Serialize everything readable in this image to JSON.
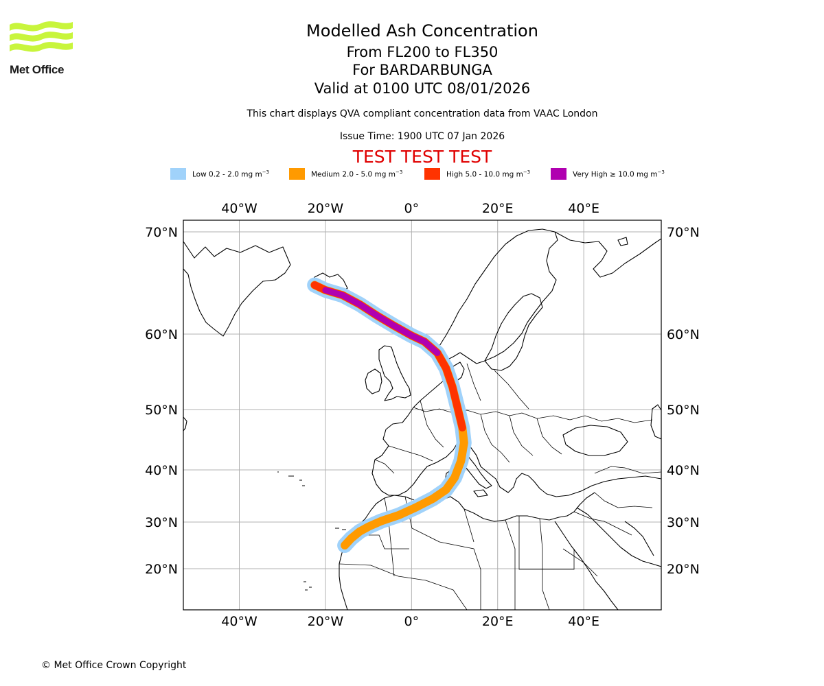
{
  "brand": {
    "name": "Met Office",
    "logo_color": "#c8f53c"
  },
  "header": {
    "title": "Modelled Ash Concentration",
    "levels": "From FL200 to FL350",
    "volcano": "For BARDARBUNGA",
    "valid": "Valid at 0100 UTC 08/01/2026",
    "subtitle": "This chart displays QVA compliant concentration data from VAAC London",
    "issue_time": "Issue Time: 1900 UTC 07 Jan 2026",
    "test_banner": "TEST TEST TEST",
    "test_color": "#e00000"
  },
  "legend": [
    {
      "label": "Low 0.2 - 2.0 mg m",
      "unit_exp": "−3",
      "color": "#a0d2fa"
    },
    {
      "label": "Medium 2.0 - 5.0 mg m",
      "unit_exp": "−3",
      "color": "#ff9a00"
    },
    {
      "label": "High 5.0 - 10.0 mg m",
      "unit_exp": "−3",
      "color": "#ff3300"
    },
    {
      "label": "Very High ≥ 10.0 mg m",
      "unit_exp": "−3",
      "color": "#b000b0"
    }
  ],
  "map": {
    "lon_range": [
      -53,
      58
    ],
    "lat_range": [
      14,
      71
    ],
    "lon_ticks": [
      "40°W",
      "20°W",
      "0°",
      "20°E",
      "40°E"
    ],
    "lat_ticks": [
      "70°N",
      "60°N",
      "50°N",
      "40°N",
      "30°N",
      "20°N"
    ],
    "plume_path": [
      [
        -22.5,
        64.8
      ],
      [
        -20,
        64.3
      ],
      [
        -16,
        63.8
      ],
      [
        -12,
        62.9
      ],
      [
        -8,
        61.8
      ],
      [
        -4,
        60.8
      ],
      [
        0,
        59.8
      ],
      [
        3,
        59
      ],
      [
        6,
        57.5
      ],
      [
        8,
        55.5
      ],
      [
        9.5,
        53
      ],
      [
        10.8,
        50
      ],
      [
        11.8,
        47
      ],
      [
        12.2,
        44.5
      ],
      [
        11.5,
        41.5
      ],
      [
        10,
        38.5
      ],
      [
        8,
        36.2
      ],
      [
        5,
        34.5
      ],
      [
        1,
        32.8
      ],
      [
        -3,
        31.3
      ],
      [
        -7,
        30.2
      ],
      [
        -10,
        29
      ],
      [
        -12,
        28
      ],
      [
        -14,
        26.5
      ],
      [
        -15.5,
        25
      ]
    ]
  },
  "copyright": "© Met Office Crown Copyright"
}
